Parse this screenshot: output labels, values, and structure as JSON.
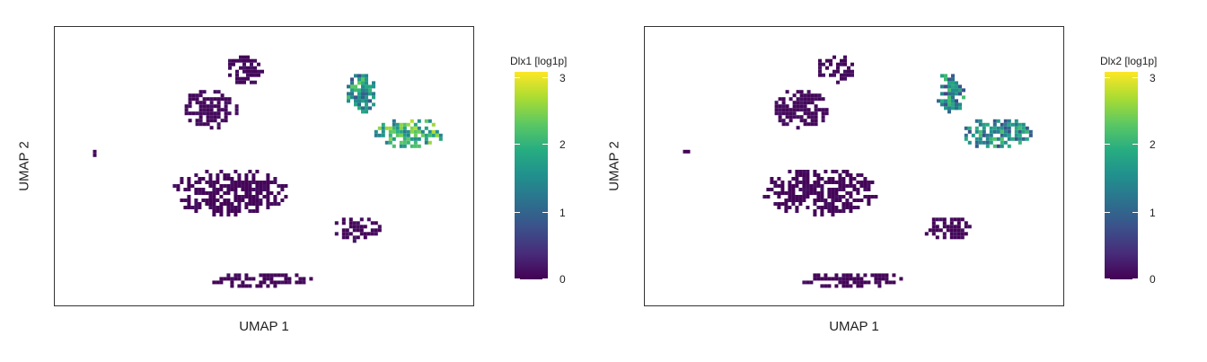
{
  "chart_data": [
    {
      "type": "scatter",
      "subtype": "umap-feature-plot",
      "title": "",
      "xlabel": "UMAP 1",
      "ylabel": "UMAP 2",
      "colorbar": {
        "label": "Dlx1 [log1p]",
        "range": [
          0,
          3.1
        ],
        "ticks": [
          "0",
          "1",
          "2",
          "3"
        ],
        "colormap": "viridis"
      },
      "grid": false,
      "clusters": [
        {
          "name": "",
          "center": [
            0.45,
            0.87
          ],
          "spread": [
            0.05,
            0.06
          ],
          "expression_mean": 0.05
        },
        {
          "name": "",
          "center": [
            0.36,
            0.72
          ],
          "spread": [
            0.07,
            0.08
          ],
          "expression_mean": 0.05
        },
        {
          "name": "",
          "center": [
            0.07,
            0.56
          ],
          "spread": [
            0.012,
            0.015
          ],
          "expression_mean": 0.02
        },
        {
          "name": "",
          "center": [
            0.41,
            0.41
          ],
          "spread": [
            0.15,
            0.09
          ],
          "expression_mean": 0.03
        },
        {
          "name": "",
          "center": [
            0.73,
            0.27
          ],
          "spread": [
            0.06,
            0.05
          ],
          "expression_mean": 0.04
        },
        {
          "name": "",
          "center": [
            0.49,
            0.08
          ],
          "spread": [
            0.13,
            0.03
          ],
          "expression_mean": 0.03
        },
        {
          "name": "",
          "center": [
            0.74,
            0.78
          ],
          "spread": [
            0.04,
            0.08
          ],
          "expression_mean": 1.6
        },
        {
          "name": "",
          "center": [
            0.86,
            0.63
          ],
          "spread": [
            0.09,
            0.06
          ],
          "expression_mean": 2.0
        }
      ]
    },
    {
      "type": "scatter",
      "subtype": "umap-feature-plot",
      "title": "",
      "xlabel": "UMAP 1",
      "ylabel": "UMAP 2",
      "colorbar": {
        "label": "Dlx2 [log1p]",
        "range": [
          0,
          3.1
        ],
        "ticks": [
          "0",
          "1",
          "2",
          "3"
        ],
        "colormap": "viridis"
      },
      "grid": false,
      "clusters": [
        {
          "name": "",
          "center": [
            0.45,
            0.87
          ],
          "spread": [
            0.05,
            0.06
          ],
          "expression_mean": 0.05
        },
        {
          "name": "",
          "center": [
            0.36,
            0.72
          ],
          "spread": [
            0.07,
            0.08
          ],
          "expression_mean": 0.05
        },
        {
          "name": "",
          "center": [
            0.07,
            0.56
          ],
          "spread": [
            0.012,
            0.015
          ],
          "expression_mean": 0.02
        },
        {
          "name": "",
          "center": [
            0.41,
            0.41
          ],
          "spread": [
            0.15,
            0.09
          ],
          "expression_mean": 0.03
        },
        {
          "name": "",
          "center": [
            0.73,
            0.27
          ],
          "spread": [
            0.06,
            0.05
          ],
          "expression_mean": 0.04
        },
        {
          "name": "",
          "center": [
            0.49,
            0.08
          ],
          "spread": [
            0.13,
            0.03
          ],
          "expression_mean": 0.03
        },
        {
          "name": "",
          "center": [
            0.74,
            0.78
          ],
          "spread": [
            0.04,
            0.08
          ],
          "expression_mean": 1.4
        },
        {
          "name": "",
          "center": [
            0.86,
            0.63
          ],
          "spread": [
            0.09,
            0.06
          ],
          "expression_mean": 1.5
        }
      ]
    }
  ],
  "panels": [
    {
      "xlabel": "UMAP 1",
      "ylabel": "UMAP 2",
      "colorbar_label": "Dlx1 [log1p]",
      "ticks": [
        "0",
        "1",
        "2",
        "3"
      ]
    },
    {
      "xlabel": "UMAP 1",
      "ylabel": "UMAP 2",
      "colorbar_label": "Dlx2 [log1p]",
      "ticks": [
        "0",
        "1",
        "2",
        "3"
      ]
    }
  ]
}
